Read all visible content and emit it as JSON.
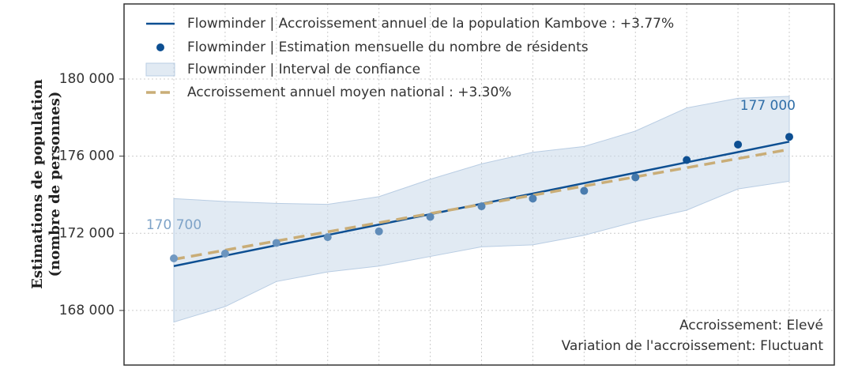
{
  "chart_data": {
    "type": "line",
    "y_label": [
      "Estimations de population",
      "(nombre de personnes)"
    ],
    "categories": [
      null,
      null,
      null,
      null,
      null,
      null,
      null,
      null,
      null,
      null,
      null,
      null,
      null
    ],
    "series": [
      {
        "name": "Flowminder | Accroissement annuel de la population Kambove : +3.77%",
        "style": "line",
        "color": "#0d4f92",
        "values": [
          170300,
          170840,
          171380,
          171910,
          172450,
          172990,
          173530,
          174060,
          174600,
          175140,
          175680,
          176210,
          176750
        ]
      },
      {
        "name": "Flowminder | Estimation mensuelle du nombre de résidents",
        "style": "points",
        "color": "#0d4f92",
        "point_colors": [
          "#7199c2",
          "#6c95bf",
          "#6892bd",
          "#6490bb",
          "#608cb9",
          "#5b88b6",
          "#5685b4",
          "#5081b2",
          "#4a7cae",
          "#4378ab",
          "#0d4f92",
          "#0d4f92",
          "#0d4f92"
        ],
        "values": [
          170700,
          170950,
          171500,
          171800,
          172100,
          172850,
          173400,
          173800,
          174200,
          174900,
          175800,
          176600,
          177000
        ],
        "value_labels": [
          "170 700",
          null,
          null,
          null,
          null,
          null,
          null,
          null,
          null,
          null,
          null,
          null,
          "177 000"
        ],
        "value_label_colors": [
          "#7ea3c8",
          null,
          null,
          null,
          null,
          null,
          null,
          null,
          null,
          null,
          null,
          null,
          "#2f6ea8"
        ]
      },
      {
        "name": "Flowminder | Interval de confiance",
        "style": "band",
        "color": "#c9d9ea",
        "upper": [
          173800,
          173650,
          173550,
          173500,
          173900,
          174800,
          175600,
          176200,
          176500,
          177300,
          178500,
          179000,
          179100
        ],
        "lower": [
          167400,
          168200,
          169500,
          170000,
          170300,
          170800,
          171300,
          171400,
          171900,
          172600,
          173200,
          174300,
          174700
        ]
      },
      {
        "name": "Accroissement annuel moyen national : +3.30%",
        "style": "dashed",
        "color": "#c9ad77",
        "values": [
          170650,
          171125,
          171600,
          172075,
          172550,
          173025,
          173500,
          173975,
          174450,
          174925,
          175400,
          175875,
          176350
        ]
      }
    ],
    "ylim": [
      165170,
      183890
    ],
    "yticks": [
      {
        "value": 168000,
        "label": "168 000"
      },
      {
        "value": 172000,
        "label": "172 000"
      },
      {
        "value": 176000,
        "label": "176 000"
      },
      {
        "value": 180000,
        "label": "180 000"
      }
    ],
    "grid": true,
    "annotations": [
      "Accroissement: Elevé",
      "Variation de l'accroissement: Fluctuant"
    ]
  }
}
